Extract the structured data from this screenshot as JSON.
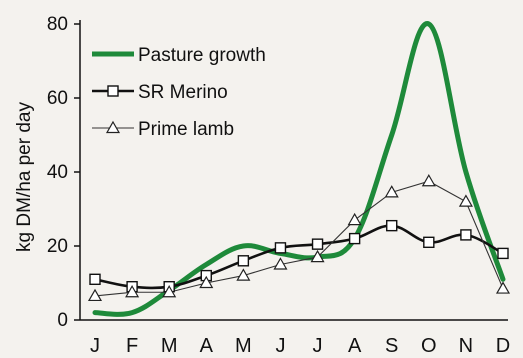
{
  "chart_data": {
    "type": "line",
    "categories": [
      "J",
      "F",
      "M",
      "A",
      "M",
      "J",
      "J",
      "A",
      "S",
      "O",
      "N",
      "D"
    ],
    "ylabel": "kg DM/ha per day",
    "ylim": [
      0,
      80
    ],
    "yticks": [
      0,
      20,
      40,
      60,
      80
    ],
    "grid": false,
    "legend_position": "top-left",
    "series": [
      {
        "name": "Pasture growth",
        "style": "thick-smooth-line",
        "color": "#1e8a3a",
        "values": [
          2,
          2,
          8,
          15,
          20,
          18,
          17,
          22,
          50,
          80,
          40,
          11
        ]
      },
      {
        "name": "SR Merino",
        "style": "line-square-markers",
        "color": "#111111",
        "values": [
          11,
          9,
          9,
          12,
          16,
          19.5,
          20.5,
          22,
          25.5,
          21,
          23,
          18
        ]
      },
      {
        "name": "Prime lamb",
        "style": "line-triangle-markers",
        "color": "#333333",
        "values": [
          6.5,
          7.5,
          7.5,
          10,
          12,
          15,
          17,
          27,
          34.5,
          37.5,
          32,
          8.5
        ]
      }
    ]
  }
}
